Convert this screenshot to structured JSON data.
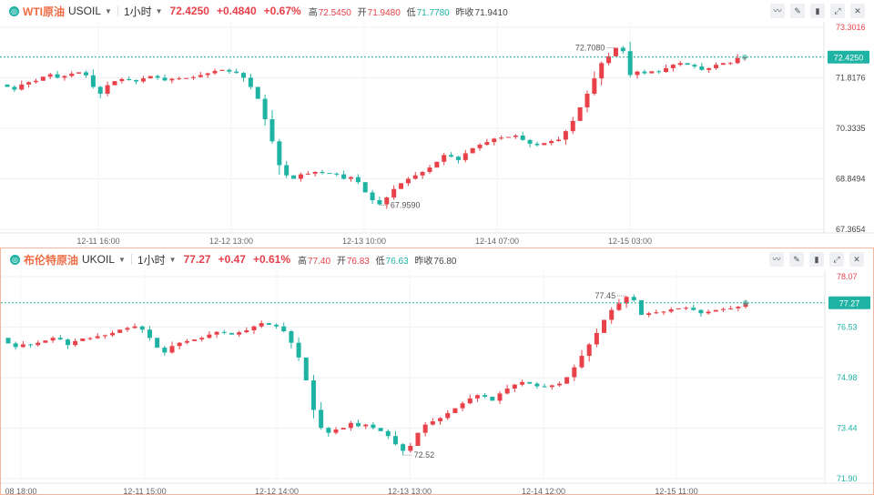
{
  "panels": [
    {
      "name": "WTI原油",
      "code": "USOIL",
      "interval": "1小时",
      "price": "72.4250",
      "change": "+0.4840",
      "change_pct": "+0.67%",
      "high_label": "高",
      "high": "72.5450",
      "open_label": "开",
      "open": "71.9480",
      "low_label": "低",
      "low": "71.7780",
      "prev_label": "昨收",
      "prev_close": "71.9410",
      "current_tag": "72.4250",
      "max_label": "72.7080",
      "min_label": "67.9590",
      "tools": [
        "line-chart-icon",
        "pencil-icon",
        "candle-icon",
        "expand-icon",
        "close-icon"
      ]
    },
    {
      "name": "布伦特原油",
      "code": "UKOIL",
      "interval": "1小时",
      "price": "77.27",
      "change": "+0.47",
      "change_pct": "+0.61%",
      "high_label": "高",
      "high": "77.40",
      "open_label": "开",
      "open": "76.83",
      "low_label": "低",
      "low": "76.63",
      "prev_label": "昨收",
      "prev_close": "76.80",
      "current_tag": "77.27",
      "max_label": "77.45",
      "min_label": "72.52",
      "tools": [
        "line-chart-icon",
        "pencil-icon",
        "candle-icon",
        "expand-icon",
        "close-icon"
      ]
    }
  ],
  "colors": {
    "up": "#e8414a",
    "down": "#1fb3a4",
    "accent": "#ee6b44"
  },
  "chart_data": [
    {
      "type": "candlestick",
      "title": "WTI原油 USOIL 1小时",
      "y_ticks": [
        "73.3016",
        "71.8176",
        "70.3335",
        "68.8494",
        "67.3654"
      ],
      "y_tick_values": [
        73.3016,
        71.8176,
        70.3335,
        68.8494,
        67.3654
      ],
      "ylim": [
        67.3654,
        73.3016
      ],
      "x_ticks": [
        "12-11 16:00",
        "12-12 13:00",
        "12-13 10:00",
        "12-14 07:00",
        "12-15 03:00"
      ],
      "current_price": 72.425,
      "annotations": [
        {
          "label": "72.7080",
          "value": 72.708
        },
        {
          "label": "67.9590",
          "value": 67.959
        }
      ],
      "path": [
        71.62,
        71.55,
        71.47,
        71.62,
        71.69,
        71.73,
        71.85,
        71.92,
        71.82,
        71.87,
        71.94,
        71.98,
        71.89,
        71.55,
        71.35,
        71.6,
        71.72,
        71.78,
        71.75,
        71.71,
        71.8,
        71.87,
        71.82,
        71.74,
        71.79,
        71.8,
        71.81,
        71.84,
        71.9,
        71.95,
        72.02,
        72.05,
        72.0,
        71.96,
        71.82,
        71.55,
        71.2,
        70.6,
        69.95,
        69.25,
        68.95,
        68.85,
        68.98,
        69.0,
        69.05,
        69.02,
        69.0,
        68.98,
        68.85,
        68.9,
        68.75,
        68.45,
        68.22,
        68.1,
        68.3,
        68.55,
        68.72,
        68.85,
        68.95,
        69.05,
        69.18,
        69.35,
        69.55,
        69.5,
        69.4,
        69.6,
        69.75,
        69.85,
        69.93,
        70.03,
        70.06,
        70.08,
        70.12,
        69.99,
        69.88,
        69.84,
        69.9,
        69.96,
        70.0,
        70.25,
        70.55,
        70.95,
        71.35,
        71.8,
        72.25,
        72.45,
        72.7,
        72.6,
        71.9,
        72.0,
        71.95,
        72.01,
        71.99,
        72.1,
        72.2,
        72.25,
        72.2,
        72.15,
        72.05,
        72.1,
        72.2,
        72.25,
        72.25,
        72.4,
        72.425
      ]
    },
    {
      "type": "candlestick",
      "title": "布伦特原油 UKOIL 1小时",
      "y_ticks": [
        "78.07",
        "76.53",
        "74.98",
        "73.44",
        "71.90"
      ],
      "y_tick_values": [
        78.07,
        76.53,
        74.98,
        73.44,
        71.9
      ],
      "ylim": [
        71.9,
        78.07
      ],
      "x_ticks": [
        "08 18:00",
        "12-11 15:00",
        "12-12 14:00",
        "12-13 13:00",
        "12-14 12:00",
        "12-15 11:00"
      ],
      "current_price": 77.27,
      "annotations": [
        {
          "label": "77.45",
          "value": 77.45
        },
        {
          "label": "72.52",
          "value": 72.52
        }
      ],
      "path": [
        76.2,
        76.03,
        75.92,
        76.0,
        75.98,
        76.05,
        76.12,
        76.2,
        76.15,
        75.98,
        76.1,
        76.18,
        76.19,
        76.25,
        76.28,
        76.35,
        76.45,
        76.5,
        76.55,
        76.45,
        76.2,
        75.9,
        75.75,
        75.95,
        76.05,
        76.1,
        76.15,
        76.2,
        76.3,
        76.38,
        76.35,
        76.3,
        76.37,
        76.43,
        76.55,
        76.65,
        76.6,
        76.55,
        76.4,
        76.05,
        75.6,
        74.9,
        74.0,
        73.45,
        73.3,
        73.4,
        73.45,
        73.6,
        73.5,
        73.55,
        73.45,
        73.35,
        73.2,
        72.95,
        72.75,
        72.9,
        73.3,
        73.55,
        73.65,
        73.75,
        73.9,
        74.05,
        74.2,
        74.35,
        74.45,
        74.4,
        74.28,
        74.5,
        74.65,
        74.77,
        74.85,
        74.8,
        74.72,
        74.7,
        74.75,
        74.8,
        75.0,
        75.3,
        75.65,
        76.0,
        76.35,
        76.75,
        77.05,
        77.25,
        77.45,
        77.35,
        76.9,
        76.95,
        76.98,
        77.0,
        77.07,
        77.1,
        77.12,
        77.05,
        76.95,
        77.0,
        77.05,
        77.08,
        77.1,
        77.15,
        77.27
      ]
    }
  ]
}
